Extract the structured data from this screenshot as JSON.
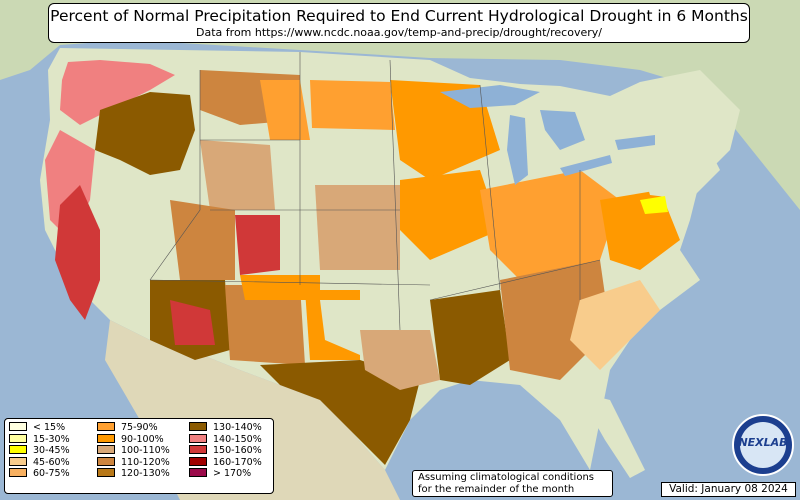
{
  "title": "Percent of Normal Precipitation Required to End Current Hydrological Drought in 6 Months",
  "subtitle": "Data from https://www.ncdc.noaa.gov/temp-and-precip/drought/recovery/",
  "note_line1": "Assuming climatological conditions",
  "note_line2": "for the remainder of the month",
  "valid": "Valid: January 08 2024",
  "logo_text": "NEXLAB",
  "legend": [
    {
      "label": "< 15%",
      "color": "#ffffe0"
    },
    {
      "label": "15-30%",
      "color": "#ffffa0"
    },
    {
      "label": "30-45%",
      "color": "#ffff00"
    },
    {
      "label": "45-60%",
      "color": "#f8cc8c"
    },
    {
      "label": "60-75%",
      "color": "#f8b060"
    },
    {
      "label": "75-90%",
      "color": "#ffa030"
    },
    {
      "label": "90-100%",
      "color": "#ff9900"
    },
    {
      "label": "100-110%",
      "color": "#d8a878"
    },
    {
      "label": "110-120%",
      "color": "#cd853f"
    },
    {
      "label": "120-130%",
      "color": "#b87818"
    },
    {
      "label": "130-140%",
      "color": "#8b5a00"
    },
    {
      "label": "140-150%",
      "color": "#f08080"
    },
    {
      "label": "150-160%",
      "color": "#d03838"
    },
    {
      "label": "160-170%",
      "color": "#a00000"
    },
    {
      "label": "> 170%",
      "color": "#9b0a4a"
    }
  ],
  "colors": {
    "ocean": "#9bb7d4",
    "land": "#dfe6c7",
    "canada": "#cbd9b4",
    "mexico": "#dfd8b8",
    "lake": "#8eb1d6"
  }
}
